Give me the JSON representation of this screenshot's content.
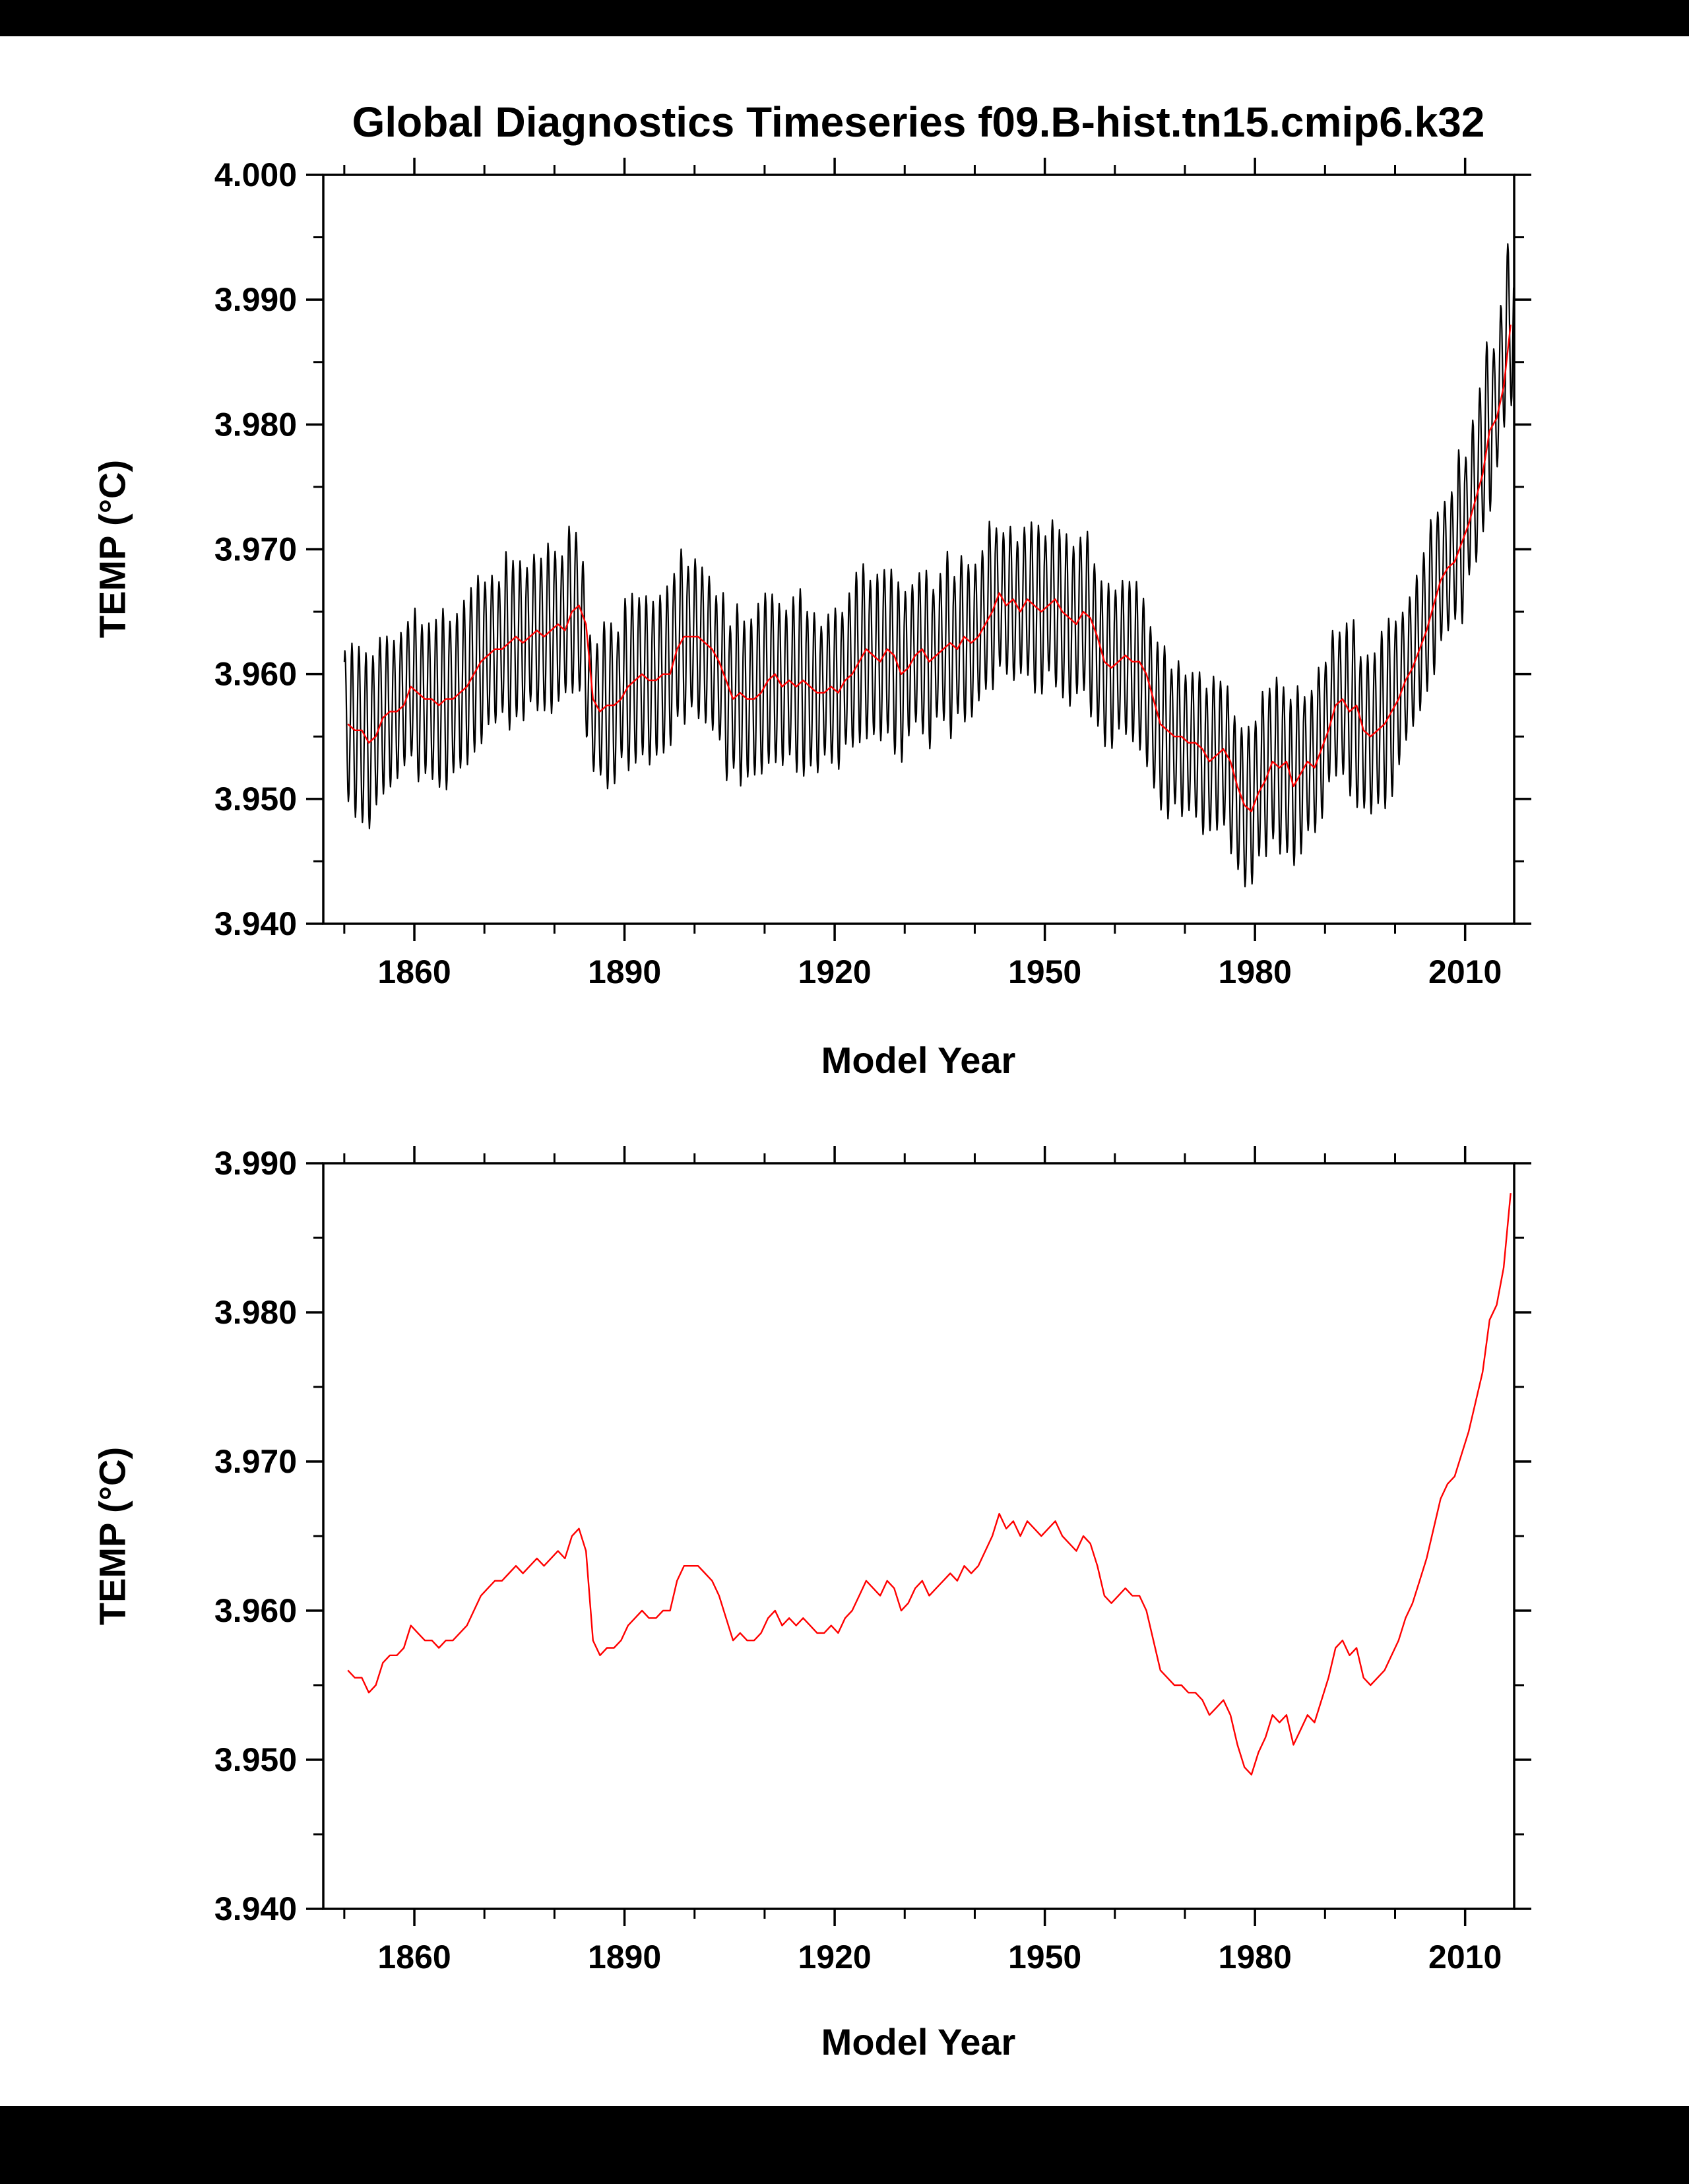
{
  "palette": {
    "page_border": "#000000",
    "paper": "#ffffff",
    "monthly_line": "#000000",
    "annual_mean_line": "#ff0000"
  },
  "chart_data": [
    {
      "type": "line",
      "title": "Global Diagnostics Timeseries f09.B-hist.tn15.cmip6.k32",
      "xlabel": "Model Year",
      "ylabel": "TEMP (°C)",
      "xlim": [
        1847,
        2017
      ],
      "ylim": [
        3.94,
        4.0
      ],
      "xticks": [
        1860,
        1890,
        1920,
        1950,
        1980,
        2010
      ],
      "xminor_step": 10,
      "ytick_labels": [
        "3.940",
        "3.950",
        "3.960",
        "3.970",
        "3.980",
        "3.990",
        "4.000"
      ],
      "yminor_step": 0.005,
      "grid": false,
      "legend": "none",
      "series": [
        {
          "name": "monthly-temp",
          "kind": "monthly",
          "color": "#000000",
          "width": 2.2,
          "derived_from": "annual-mean-temp",
          "seasonal_amplitude": 0.0063,
          "amplitude_jitter": 0.35
        },
        {
          "name": "annual-mean-temp",
          "kind": "annual",
          "color": "#ff0000",
          "width": 2.4,
          "start_year": 1850,
          "values": [
            3.956,
            3.9555,
            3.9555,
            3.9545,
            3.955,
            3.9565,
            3.957,
            3.957,
            3.9575,
            3.959,
            3.9585,
            3.958,
            3.958,
            3.9575,
            3.958,
            3.958,
            3.9585,
            3.959,
            3.96,
            3.961,
            3.9615,
            3.962,
            3.962,
            3.9625,
            3.963,
            3.9625,
            3.963,
            3.9635,
            3.963,
            3.9635,
            3.964,
            3.9635,
            3.965,
            3.9655,
            3.964,
            3.958,
            3.957,
            3.9575,
            3.9575,
            3.958,
            3.959,
            3.9595,
            3.96,
            3.9595,
            3.9595,
            3.96,
            3.96,
            3.962,
            3.963,
            3.963,
            3.963,
            3.9625,
            3.962,
            3.961,
            3.9595,
            3.958,
            3.9585,
            3.958,
            3.958,
            3.9585,
            3.9595,
            3.96,
            3.959,
            3.9595,
            3.959,
            3.9595,
            3.959,
            3.9585,
            3.9585,
            3.959,
            3.9585,
            3.9595,
            3.96,
            3.961,
            3.962,
            3.9615,
            3.961,
            3.962,
            3.9615,
            3.96,
            3.9605,
            3.9615,
            3.962,
            3.961,
            3.9615,
            3.962,
            3.9625,
            3.962,
            3.963,
            3.9625,
            3.963,
            3.964,
            3.965,
            3.9665,
            3.9655,
            3.966,
            3.965,
            3.966,
            3.9655,
            3.965,
            3.9655,
            3.966,
            3.965,
            3.9645,
            3.964,
            3.965,
            3.9645,
            3.963,
            3.961,
            3.9605,
            3.961,
            3.9615,
            3.961,
            3.961,
            3.96,
            3.958,
            3.956,
            3.9555,
            3.955,
            3.955,
            3.9545,
            3.9545,
            3.954,
            3.953,
            3.9535,
            3.954,
            3.953,
            3.951,
            3.9495,
            3.949,
            3.9505,
            3.9515,
            3.953,
            3.9525,
            3.953,
            3.951,
            3.952,
            3.953,
            3.9525,
            3.954,
            3.9555,
            3.9575,
            3.958,
            3.957,
            3.9575,
            3.9555,
            3.955,
            3.9555,
            3.956,
            3.957,
            3.958,
            3.9595,
            3.9605,
            3.962,
            3.9635,
            3.9655,
            3.9675,
            3.9685,
            3.969,
            3.9705,
            3.972,
            3.974,
            3.976,
            3.9795,
            3.9805,
            3.983,
            3.988
          ]
        }
      ]
    },
    {
      "type": "line",
      "title": "",
      "xlabel": "Model Year",
      "ylabel": "TEMP (°C)",
      "xlim": [
        1847,
        2017
      ],
      "ylim": [
        3.94,
        3.99
      ],
      "xticks": [
        1860,
        1890,
        1920,
        1950,
        1980,
        2010
      ],
      "xminor_step": 10,
      "ytick_labels": [
        "3.940",
        "3.950",
        "3.960",
        "3.970",
        "3.980",
        "3.990"
      ],
      "yminor_step": 0.005,
      "grid": false,
      "legend": "none",
      "series": [
        {
          "name": "annual-mean-temp",
          "kind": "annual",
          "color": "#ff0000",
          "width": 2.4,
          "start_year": 1850,
          "values": [
            3.956,
            3.9555,
            3.9555,
            3.9545,
            3.955,
            3.9565,
            3.957,
            3.957,
            3.9575,
            3.959,
            3.9585,
            3.958,
            3.958,
            3.9575,
            3.958,
            3.958,
            3.9585,
            3.959,
            3.96,
            3.961,
            3.9615,
            3.962,
            3.962,
            3.9625,
            3.963,
            3.9625,
            3.963,
            3.9635,
            3.963,
            3.9635,
            3.964,
            3.9635,
            3.965,
            3.9655,
            3.964,
            3.958,
            3.957,
            3.9575,
            3.9575,
            3.958,
            3.959,
            3.9595,
            3.96,
            3.9595,
            3.9595,
            3.96,
            3.96,
            3.962,
            3.963,
            3.963,
            3.963,
            3.9625,
            3.962,
            3.961,
            3.9595,
            3.958,
            3.9585,
            3.958,
            3.958,
            3.9585,
            3.9595,
            3.96,
            3.959,
            3.9595,
            3.959,
            3.9595,
            3.959,
            3.9585,
            3.9585,
            3.959,
            3.9585,
            3.9595,
            3.96,
            3.961,
            3.962,
            3.9615,
            3.961,
            3.962,
            3.9615,
            3.96,
            3.9605,
            3.9615,
            3.962,
            3.961,
            3.9615,
            3.962,
            3.9625,
            3.962,
            3.963,
            3.9625,
            3.963,
            3.964,
            3.965,
            3.9665,
            3.9655,
            3.966,
            3.965,
            3.966,
            3.9655,
            3.965,
            3.9655,
            3.966,
            3.965,
            3.9645,
            3.964,
            3.965,
            3.9645,
            3.963,
            3.961,
            3.9605,
            3.961,
            3.9615,
            3.961,
            3.961,
            3.96,
            3.958,
            3.956,
            3.9555,
            3.955,
            3.955,
            3.9545,
            3.9545,
            3.954,
            3.953,
            3.9535,
            3.954,
            3.953,
            3.951,
            3.9495,
            3.949,
            3.9505,
            3.9515,
            3.953,
            3.9525,
            3.953,
            3.951,
            3.952,
            3.953,
            3.9525,
            3.954,
            3.9555,
            3.9575,
            3.958,
            3.957,
            3.9575,
            3.9555,
            3.955,
            3.9555,
            3.956,
            3.957,
            3.958,
            3.9595,
            3.9605,
            3.962,
            3.9635,
            3.9655,
            3.9675,
            3.9685,
            3.969,
            3.9705,
            3.972,
            3.974,
            3.976,
            3.9795,
            3.9805,
            3.983,
            3.988
          ]
        }
      ]
    }
  ]
}
